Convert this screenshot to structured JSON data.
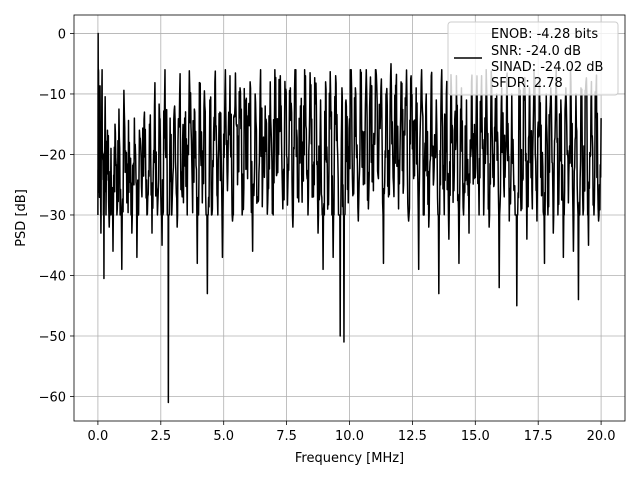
{
  "chart_data": {
    "type": "line",
    "title": "",
    "xlabel": "Frequency [MHz]",
    "ylabel": "PSD [dB]",
    "xlim": [
      -0.95,
      20.95
    ],
    "ylim": [
      -64.05,
      3.05
    ],
    "xticks": [
      0.0,
      2.5,
      5.0,
      7.5,
      10.0,
      12.5,
      15.0,
      17.5,
      20.0
    ],
    "xtick_labels": [
      "0.0",
      "2.5",
      "5.0",
      "7.5",
      "10.0",
      "12.5",
      "15.0",
      "17.5",
      "20.0"
    ],
    "yticks": [
      0,
      -10,
      -20,
      -30,
      -40,
      -50,
      -60
    ],
    "ytick_labels": [
      "0",
      "−10",
      "−20",
      "−30",
      "−40",
      "−50",
      "−60"
    ],
    "grid": true,
    "legend_position": "top-right",
    "series": [
      {
        "name": "ENOB: -4.28 bits\nSNR: -24.0 dB\nSINAD: -24.02 dB\nSFDR: 2.78",
        "legend_lines": [
          "ENOB: -4.28 bits",
          "SNR: -24.0 dB",
          "SINAD: -24.02 dB",
          "SFDR: 2.78"
        ],
        "color": "#000000",
        "envelope_description": "dense noise spectrum, 0 to 20 MHz, mostly between about -8 and -28 dB",
        "points": [
          [
            0.0,
            -30
          ],
          [
            0.01,
            0
          ],
          [
            0.03,
            -14
          ],
          [
            0.06,
            -25
          ],
          [
            0.09,
            -12
          ],
          [
            0.12,
            -33
          ],
          [
            0.16,
            -8
          ],
          [
            0.2,
            -21
          ],
          [
            0.24,
            -40.5
          ],
          [
            0.28,
            -14
          ],
          [
            0.33,
            -26
          ],
          [
            0.38,
            -16
          ],
          [
            0.45,
            -32
          ],
          [
            0.52,
            -19
          ],
          [
            0.6,
            -36
          ],
          [
            0.68,
            -15
          ],
          [
            0.77,
            -29
          ],
          [
            0.85,
            -17
          ],
          [
            0.95,
            -39
          ],
          [
            1.05,
            -13
          ],
          [
            1.15,
            -28
          ],
          [
            1.25,
            -18
          ],
          [
            1.35,
            -33
          ],
          [
            1.45,
            -14
          ],
          [
            1.55,
            -37
          ],
          [
            1.65,
            -16
          ],
          [
            1.75,
            -27
          ],
          [
            1.85,
            -13
          ],
          [
            1.95,
            -30
          ],
          [
            2.05,
            -15
          ],
          [
            2.15,
            -33
          ],
          [
            2.25,
            -12
          ],
          [
            2.35,
            -26
          ],
          [
            2.45,
            -14
          ],
          [
            2.55,
            -35
          ],
          [
            2.65,
            -11
          ],
          [
            2.75,
            -22
          ],
          [
            2.8,
            -61
          ],
          [
            2.87,
            -14
          ],
          [
            2.95,
            -28
          ],
          [
            3.05,
            -12
          ],
          [
            3.15,
            -32
          ],
          [
            3.25,
            -10
          ],
          [
            3.35,
            -27
          ],
          [
            3.45,
            -14
          ],
          [
            3.55,
            -30
          ],
          [
            3.65,
            -9
          ],
          [
            3.75,
            -25
          ],
          [
            3.85,
            -13
          ],
          [
            3.95,
            -38
          ],
          [
            4.05,
            -10
          ],
          [
            4.15,
            -28
          ],
          [
            4.25,
            -12
          ],
          [
            4.35,
            -43
          ],
          [
            4.45,
            -11
          ],
          [
            4.55,
            -29
          ],
          [
            4.65,
            -8
          ],
          [
            4.75,
            -27
          ],
          [
            4.85,
            -13
          ],
          [
            4.95,
            -37
          ],
          [
            5.05,
            -10
          ],
          [
            5.15,
            -26
          ],
          [
            5.25,
            -7
          ],
          [
            5.35,
            -31
          ],
          [
            5.45,
            -12
          ],
          [
            5.55,
            -25
          ],
          [
            5.65,
            -9
          ],
          [
            5.75,
            -29
          ],
          [
            5.85,
            -11
          ],
          [
            5.95,
            -24
          ],
          [
            6.05,
            -8
          ],
          [
            6.15,
            -36
          ],
          [
            6.25,
            -10
          ],
          [
            6.35,
            -27
          ],
          [
            6.45,
            -9
          ],
          [
            6.55,
            -24
          ],
          [
            6.65,
            -12
          ],
          [
            6.75,
            -28
          ],
          [
            6.85,
            -8
          ],
          [
            6.95,
            -26
          ],
          [
            7.05,
            -10
          ],
          [
            7.15,
            -23
          ],
          [
            7.25,
            -7
          ],
          [
            7.35,
            -29
          ],
          [
            7.45,
            -11
          ],
          [
            7.55,
            -25
          ],
          [
            7.65,
            -9
          ],
          [
            7.75,
            -32
          ],
          [
            7.85,
            -8
          ],
          [
            7.95,
            -27
          ],
          [
            8.05,
            -12
          ],
          [
            8.15,
            -24
          ],
          [
            8.25,
            -7
          ],
          [
            8.35,
            -30
          ],
          [
            8.45,
            -10
          ],
          [
            8.55,
            -26
          ],
          [
            8.65,
            -9
          ],
          [
            8.75,
            -33
          ],
          [
            8.85,
            -11
          ],
          [
            8.95,
            -39
          ],
          [
            9.05,
            -8
          ],
          [
            9.15,
            -25
          ],
          [
            9.25,
            -10
          ],
          [
            9.35,
            -37
          ],
          [
            9.45,
            -7
          ],
          [
            9.55,
            -24
          ],
          [
            9.63,
            -50
          ],
          [
            9.7,
            -9
          ],
          [
            9.78,
            -51
          ],
          [
            9.86,
            -11
          ],
          [
            9.95,
            -28
          ],
          [
            10.05,
            -8
          ],
          [
            10.15,
            -24
          ],
          [
            10.25,
            -10
          ],
          [
            10.35,
            -31
          ],
          [
            10.45,
            -7
          ],
          [
            10.55,
            -25
          ],
          [
            10.65,
            -9
          ],
          [
            10.75,
            -29
          ],
          [
            10.85,
            -11
          ],
          [
            10.95,
            -26
          ],
          [
            11.05,
            -6
          ],
          [
            11.15,
            -24
          ],
          [
            11.25,
            -9
          ],
          [
            11.35,
            -38
          ],
          [
            11.45,
            -10
          ],
          [
            11.55,
            -27
          ],
          [
            11.65,
            -5
          ],
          [
            11.75,
            -25
          ],
          [
            11.85,
            -9
          ],
          [
            11.95,
            -29
          ],
          [
            12.05,
            -8
          ],
          [
            12.15,
            -25
          ],
          [
            12.25,
            -10
          ],
          [
            12.35,
            -31
          ],
          [
            12.45,
            -7
          ],
          [
            12.55,
            -24
          ],
          [
            12.65,
            -9
          ],
          [
            12.75,
            -39
          ],
          [
            12.85,
            -8
          ],
          [
            12.95,
            -26
          ],
          [
            13.05,
            -10
          ],
          [
            13.15,
            -32
          ],
          [
            13.25,
            -7
          ],
          [
            13.35,
            -24
          ],
          [
            13.45,
            -11
          ],
          [
            13.55,
            -43
          ],
          [
            13.65,
            -8
          ],
          [
            13.75,
            -25
          ],
          [
            13.85,
            -10
          ],
          [
            13.95,
            -34
          ],
          [
            14.05,
            -9
          ],
          [
            14.15,
            -26
          ],
          [
            14.25,
            -7
          ],
          [
            14.35,
            -38
          ],
          [
            14.45,
            -9
          ],
          [
            14.55,
            -27
          ],
          [
            14.65,
            -11
          ],
          [
            14.75,
            -33
          ],
          [
            14.85,
            -8
          ],
          [
            14.95,
            -24
          ],
          [
            15.05,
            -10
          ],
          [
            15.15,
            -30
          ],
          [
            15.25,
            -7
          ],
          [
            15.35,
            -26
          ],
          [
            15.45,
            -9
          ],
          [
            15.55,
            -32
          ],
          [
            15.65,
            -8
          ],
          [
            15.75,
            -25
          ],
          [
            15.85,
            -10
          ],
          [
            15.95,
            -42
          ],
          [
            16.05,
            -9
          ],
          [
            16.15,
            -27
          ],
          [
            16.25,
            -7
          ],
          [
            16.35,
            -31
          ],
          [
            16.45,
            -10
          ],
          [
            16.55,
            -26
          ],
          [
            16.65,
            -45
          ],
          [
            16.75,
            -8
          ],
          [
            16.85,
            -29
          ],
          [
            16.95,
            -11
          ],
          [
            17.05,
            -34
          ],
          [
            17.15,
            -9
          ],
          [
            17.25,
            -26
          ],
          [
            17.35,
            -10
          ],
          [
            17.45,
            -31
          ],
          [
            17.55,
            -8
          ],
          [
            17.65,
            -25
          ],
          [
            17.75,
            -38
          ],
          [
            17.82,
            -10
          ],
          [
            17.9,
            -27
          ],
          [
            18.0,
            -9
          ],
          [
            18.1,
            -33
          ],
          [
            18.2,
            -8
          ],
          [
            18.3,
            -26
          ],
          [
            18.4,
            -11
          ],
          [
            18.5,
            -37
          ],
          [
            18.6,
            -9
          ],
          [
            18.7,
            -28
          ],
          [
            18.8,
            -8
          ],
          [
            18.9,
            -36
          ],
          [
            19.0,
            -10
          ],
          [
            19.1,
            -44
          ],
          [
            19.2,
            -9
          ],
          [
            19.3,
            -29
          ],
          [
            19.4,
            -8
          ],
          [
            19.5,
            -35
          ],
          [
            19.6,
            -11
          ],
          [
            19.7,
            -27
          ],
          [
            19.8,
            -9
          ],
          [
            19.9,
            -31
          ],
          [
            20.0,
            -14
          ]
        ]
      }
    ]
  }
}
